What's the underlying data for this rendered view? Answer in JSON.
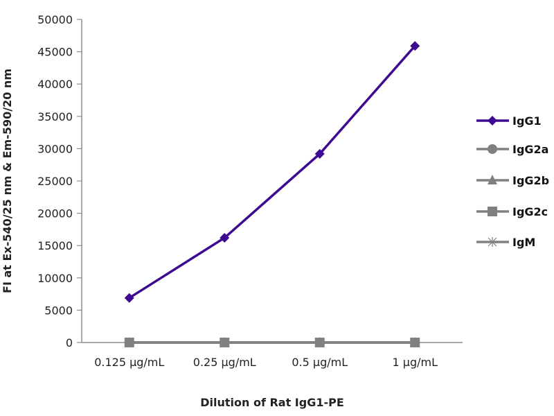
{
  "chart_data": {
    "type": "line",
    "title": "",
    "xlabel": "Dilution of Rat IgG1-PE",
    "ylabel": "FI at Ex-540/25 nm & Em-590/20 nm",
    "categories": [
      "0.125 µg/mL",
      "0.25 µg/mL",
      "0.5 µg/mL",
      "1 µg/mL"
    ],
    "ylim": [
      0,
      50000
    ],
    "yticks": [
      0,
      5000,
      10000,
      15000,
      20000,
      25000,
      30000,
      35000,
      40000,
      45000,
      50000
    ],
    "grid": false,
    "legend_position": "right",
    "series": [
      {
        "name": "IgG1",
        "values": [
          6900,
          16200,
          29200,
          45900
        ],
        "color": "#3d0a91",
        "marker": "diamond"
      },
      {
        "name": "IgG2a",
        "values": [
          0,
          0,
          0,
          0
        ],
        "color": "#808080",
        "marker": "circle"
      },
      {
        "name": "IgG2b",
        "values": [
          0,
          0,
          0,
          0
        ],
        "color": "#808080",
        "marker": "triangle"
      },
      {
        "name": "IgG2c",
        "values": [
          0,
          0,
          0,
          0
        ],
        "color": "#808080",
        "marker": "square"
      },
      {
        "name": "IgM",
        "values": [
          0,
          0,
          0,
          0
        ],
        "color": "#808080",
        "marker": "star"
      }
    ]
  }
}
